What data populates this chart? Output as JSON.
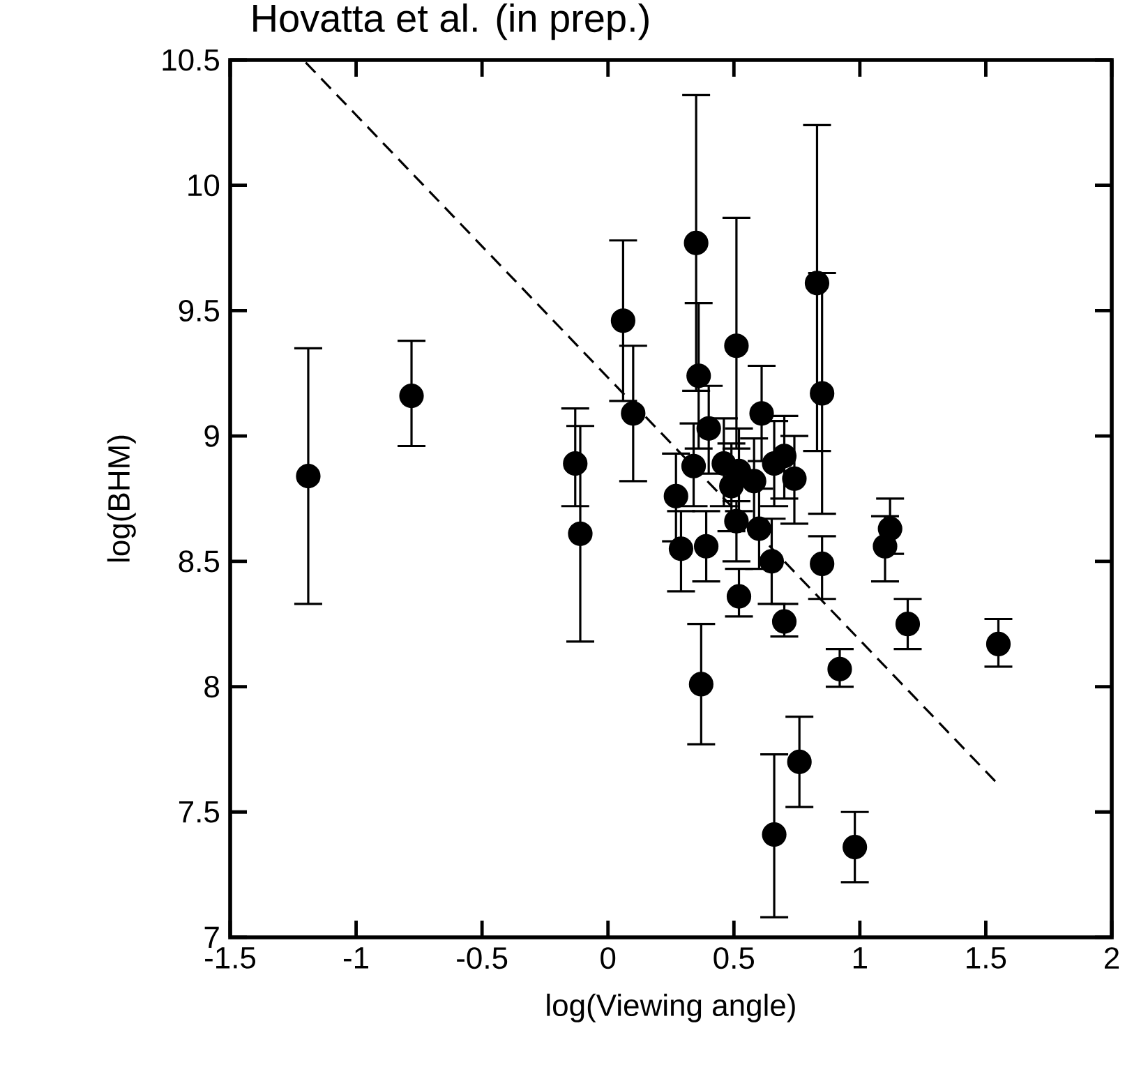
{
  "chart_data": {
    "type": "scatter",
    "title": "Hovatta et al. (in prep.)",
    "xlabel": "log(Viewing angle)",
    "ylabel": "log(BHM)",
    "xlim": [
      -1.5,
      2
    ],
    "ylim": [
      7,
      10.5
    ],
    "xticks": [
      -1.5,
      -1,
      -0.5,
      0,
      0.5,
      1,
      1.5,
      2
    ],
    "yticks": [
      7,
      7.5,
      8,
      8.5,
      9,
      9.5,
      10,
      10.5
    ],
    "series": [
      {
        "marker": "circle",
        "color": "#000000",
        "x": [
          -1.19,
          -0.78,
          -0.13,
          -0.11,
          0.06,
          0.1,
          0.35,
          0.36,
          0.51,
          0.83,
          0.85,
          0.61,
          0.4,
          0.34,
          0.46,
          0.52,
          0.66,
          0.7,
          0.74,
          0.27,
          0.49,
          0.58,
          0.51,
          0.6,
          0.29,
          0.39,
          0.65,
          0.85,
          1.12,
          1.1,
          0.52,
          0.7,
          1.19,
          1.55,
          0.92,
          0.37,
          0.76,
          0.66,
          0.98
        ],
        "values": [
          8.84,
          9.16,
          8.89,
          8.61,
          9.46,
          9.09,
          9.77,
          9.24,
          9.36,
          9.61,
          9.17,
          9.09,
          9.03,
          8.88,
          8.89,
          8.86,
          8.89,
          8.92,
          8.83,
          8.76,
          8.8,
          8.82,
          8.66,
          8.63,
          8.55,
          8.56,
          8.5,
          8.49,
          8.63,
          8.56,
          8.36,
          8.26,
          8.25,
          8.17,
          8.07,
          8.01,
          7.7,
          7.41,
          7.36
        ],
        "errors": [
          [
            8.33,
            9.35
          ],
          [
            8.96,
            9.38
          ],
          [
            8.72,
            9.11
          ],
          [
            8.18,
            9.04
          ],
          [
            9.14,
            9.78
          ],
          [
            8.82,
            9.36
          ],
          [
            9.18,
            10.36
          ],
          [
            8.95,
            9.53
          ],
          [
            8.95,
            9.87
          ],
          [
            8.94,
            10.24
          ],
          [
            8.69,
            9.65
          ],
          [
            8.9,
            9.28
          ],
          [
            8.85,
            9.2
          ],
          [
            8.72,
            9.05
          ],
          [
            8.72,
            9.07
          ],
          [
            8.7,
            9.03
          ],
          [
            8.72,
            9.06
          ],
          [
            8.75,
            9.08
          ],
          [
            8.65,
            9.0
          ],
          [
            8.58,
            8.93
          ],
          [
            8.62,
            8.97
          ],
          [
            8.65,
            8.99
          ],
          [
            8.5,
            8.74
          ],
          [
            8.47,
            8.79
          ],
          [
            8.38,
            8.7
          ],
          [
            8.42,
            8.7
          ],
          [
            8.33,
            8.67
          ],
          [
            8.35,
            8.6
          ],
          [
            8.53,
            8.75
          ],
          [
            8.42,
            8.68
          ],
          [
            8.28,
            8.47
          ],
          [
            8.2,
            8.33
          ],
          [
            8.15,
            8.35
          ],
          [
            8.08,
            8.27
          ],
          [
            8.0,
            8.15
          ],
          [
            7.77,
            8.25
          ],
          [
            7.52,
            7.88
          ],
          [
            7.08,
            7.73
          ],
          [
            7.22,
            7.5
          ]
        ]
      },
      {
        "type": "line",
        "line_style": "dashed",
        "color": "#000000",
        "x": [
          -1.2,
          1.54
        ],
        "values": [
          10.49,
          7.62
        ]
      }
    ]
  }
}
